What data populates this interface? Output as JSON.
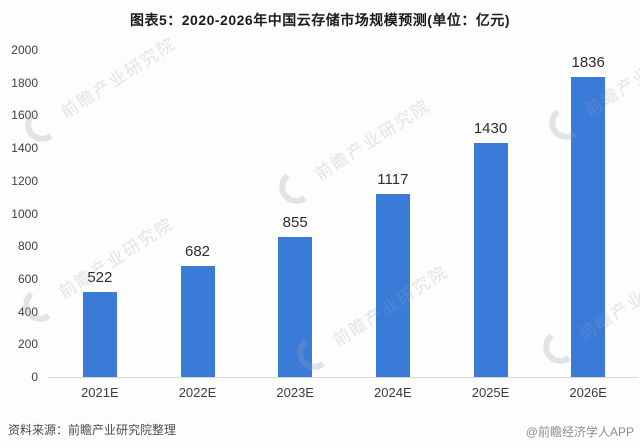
{
  "title": "图表5：2020-2026年中国云存储市场规模预测(单位：亿元)",
  "chart_data": {
    "type": "bar",
    "categories": [
      "2021E",
      "2022E",
      "2023E",
      "2024E",
      "2025E",
      "2026E"
    ],
    "values": [
      522,
      682,
      855,
      1117,
      1430,
      1836
    ],
    "title": "图表5：2020-2026年中国云存储市场规模预测(单位：亿元)",
    "xlabel": "",
    "ylabel": "",
    "unit": "亿元",
    "ylim": [
      0,
      2000
    ],
    "ytick_step": 200,
    "yticks": [
      0,
      200,
      400,
      600,
      800,
      1000,
      1200,
      1400,
      1600,
      1800,
      2000
    ],
    "bar_color": "#3a7bd8",
    "grid": false,
    "legend": null,
    "value_labels_shown": true
  },
  "footer": {
    "source": "资料来源：前瞻产业研究院整理",
    "credit": "@前瞻经济学人APP"
  },
  "watermark": {
    "text": "前瞻产业研究院"
  }
}
